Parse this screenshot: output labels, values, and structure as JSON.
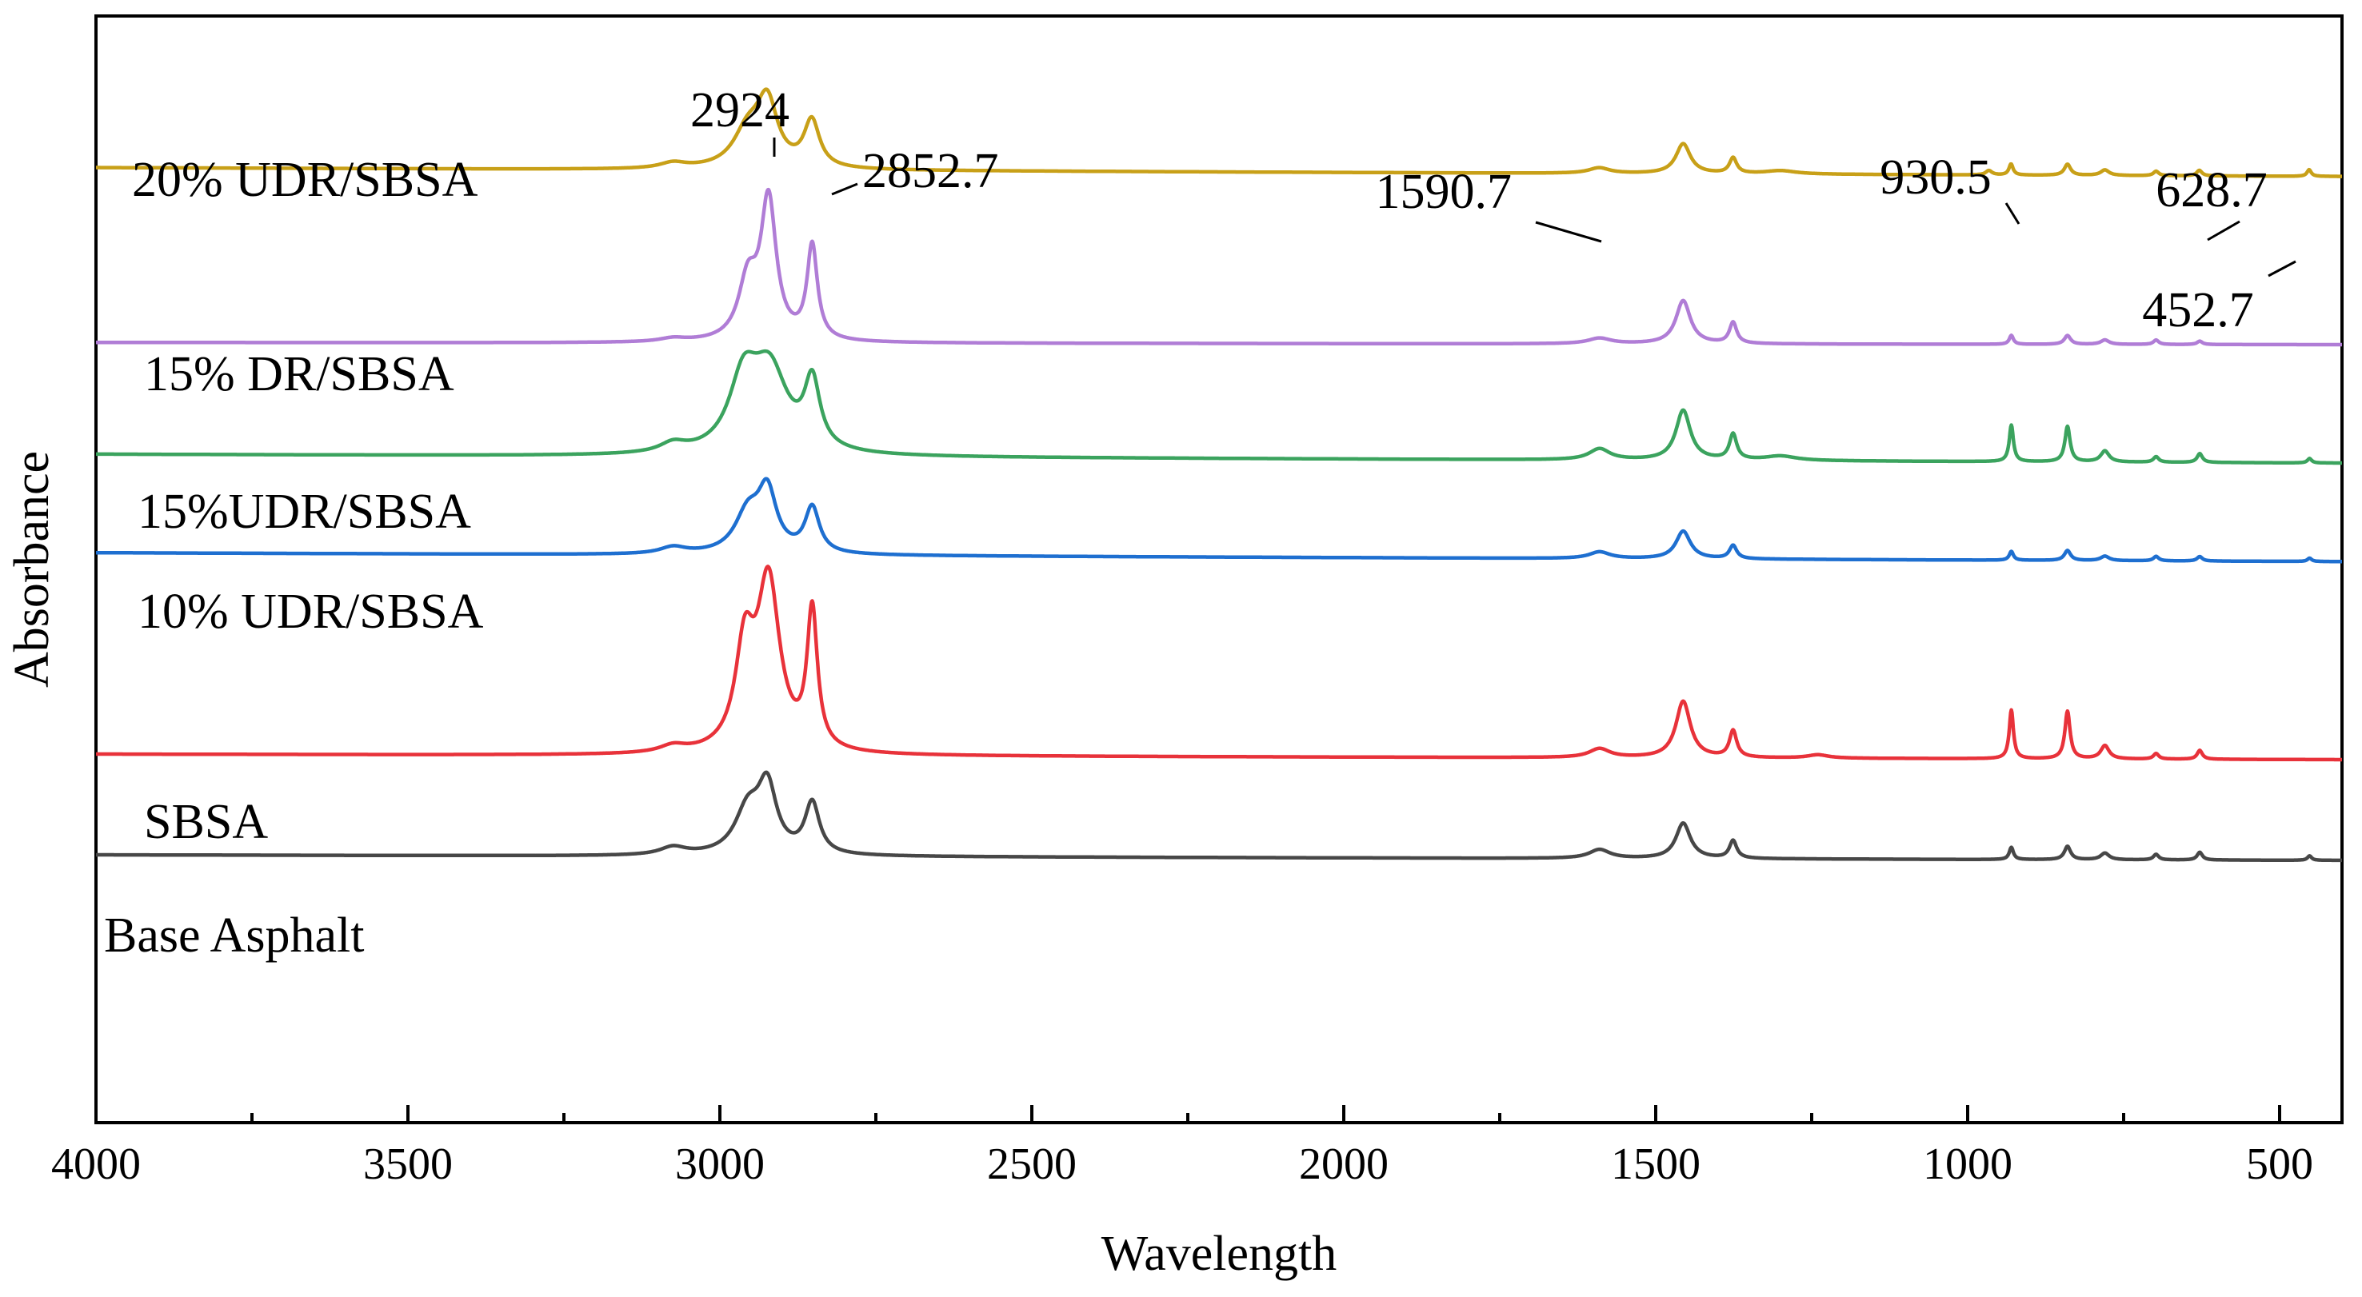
{
  "chart_data": {
    "type": "line",
    "title": "",
    "xlabel": "Wavelength",
    "ylabel": "Absorbance",
    "xlim": [
      4000,
      400
    ],
    "x_inverted": true,
    "xticks": [
      4000,
      3500,
      3000,
      2500,
      2000,
      1500,
      1000,
      500
    ],
    "xtick_labels": [
      "4000",
      "3500",
      "3000",
      "2500",
      "2000",
      "1500",
      "1000",
      "500"
    ],
    "ylim": [
      0,
      10
    ],
    "yticks_shown": false,
    "grid": false,
    "legend": "inline labels beside each curve",
    "series": [
      {
        "name": "20% UDR/SBSA",
        "color": "#C8A018",
        "baseline": 8.63,
        "drift": -0.08,
        "peaks": [
          {
            "x": 3075,
            "h": 0.05,
            "w": 25
          },
          {
            "x": 2955,
            "h": 0.33,
            "w": 28
          },
          {
            "x": 2924,
            "h": 0.56,
            "w": 20
          },
          {
            "x": 2852.7,
            "h": 0.42,
            "w": 15
          },
          {
            "x": 1590.7,
            "h": 0.05,
            "w": 20
          },
          {
            "x": 1456,
            "h": 0.27,
            "w": 14
          },
          {
            "x": 1376,
            "h": 0.14,
            "w": 7
          },
          {
            "x": 1300,
            "h": 0.03,
            "w": 30
          },
          {
            "x": 966,
            "h": 0.04,
            "w": 6
          },
          {
            "x": 930.5,
            "h": 0.1,
            "w": 4
          },
          {
            "x": 840,
            "h": 0.1,
            "w": 6
          },
          {
            "x": 780,
            "h": 0.05,
            "w": 8
          },
          {
            "x": 698,
            "h": 0.04,
            "w": 5
          },
          {
            "x": 628.7,
            "h": 0.05,
            "w": 5
          },
          {
            "x": 452.7,
            "h": 0.06,
            "w": 4
          }
        ]
      },
      {
        "name": "15% DR/SBSA",
        "color": "#B07DD6",
        "baseline": 7.05,
        "drift": -0.02,
        "peaks": [
          {
            "x": 3075,
            "h": 0.03,
            "w": 25
          },
          {
            "x": 2955,
            "h": 0.52,
            "w": 18
          },
          {
            "x": 2922,
            "h": 1.25,
            "w": 15
          },
          {
            "x": 2852,
            "h": 0.85,
            "w": 10
          },
          {
            "x": 1590,
            "h": 0.05,
            "w": 22
          },
          {
            "x": 1456,
            "h": 0.39,
            "w": 14
          },
          {
            "x": 1376,
            "h": 0.19,
            "w": 7
          },
          {
            "x": 930,
            "h": 0.08,
            "w": 4
          },
          {
            "x": 840,
            "h": 0.08,
            "w": 6
          },
          {
            "x": 780,
            "h": 0.04,
            "w": 8
          },
          {
            "x": 698,
            "h": 0.04,
            "w": 5
          },
          {
            "x": 628,
            "h": 0.03,
            "w": 5
          }
        ]
      },
      {
        "name": "15%UDR/SBSA",
        "color": "#3BA35E",
        "baseline": 6.04,
        "drift": -0.08,
        "peaks": [
          {
            "x": 3075,
            "h": 0.08,
            "w": 25
          },
          {
            "x": 2962,
            "h": 0.61,
            "w": 28
          },
          {
            "x": 2920,
            "h": 0.72,
            "w": 35
          },
          {
            "x": 2852,
            "h": 0.6,
            "w": 15
          },
          {
            "x": 1590,
            "h": 0.1,
            "w": 20
          },
          {
            "x": 1456,
            "h": 0.45,
            "w": 14
          },
          {
            "x": 1376,
            "h": 0.23,
            "w": 7
          },
          {
            "x": 1300,
            "h": 0.04,
            "w": 30
          },
          {
            "x": 930,
            "h": 0.33,
            "w": 4
          },
          {
            "x": 840,
            "h": 0.32,
            "w": 5
          },
          {
            "x": 780,
            "h": 0.1,
            "w": 8
          },
          {
            "x": 698,
            "h": 0.05,
            "w": 5
          },
          {
            "x": 628,
            "h": 0.08,
            "w": 5
          },
          {
            "x": 452,
            "h": 0.04,
            "w": 4
          }
        ]
      },
      {
        "name": "10% UDR/SBSA",
        "color": "#1E6FD0",
        "baseline": 5.15,
        "drift": -0.08,
        "peaks": [
          {
            "x": 3075,
            "h": 0.06,
            "w": 25
          },
          {
            "x": 2955,
            "h": 0.36,
            "w": 25
          },
          {
            "x": 2924,
            "h": 0.53,
            "w": 18
          },
          {
            "x": 2852,
            "h": 0.41,
            "w": 14
          },
          {
            "x": 1590,
            "h": 0.06,
            "w": 20
          },
          {
            "x": 1456,
            "h": 0.25,
            "w": 14
          },
          {
            "x": 1376,
            "h": 0.12,
            "w": 7
          },
          {
            "x": 930,
            "h": 0.08,
            "w": 4
          },
          {
            "x": 840,
            "h": 0.09,
            "w": 6
          },
          {
            "x": 780,
            "h": 0.04,
            "w": 8
          },
          {
            "x": 698,
            "h": 0.04,
            "w": 5
          },
          {
            "x": 628,
            "h": 0.04,
            "w": 5
          },
          {
            "x": 452,
            "h": 0.03,
            "w": 4
          }
        ]
      },
      {
        "name": "SBSA",
        "color": "#E8323A",
        "baseline": 3.33,
        "drift": -0.05,
        "peaks": [
          {
            "x": 3075,
            "h": 0.06,
            "w": 25
          },
          {
            "x": 2960,
            "h": 0.88,
            "w": 18
          },
          {
            "x": 2922,
            "h": 1.52,
            "w": 22
          },
          {
            "x": 2852,
            "h": 1.24,
            "w": 10
          },
          {
            "x": 1590,
            "h": 0.08,
            "w": 20
          },
          {
            "x": 1456,
            "h": 0.51,
            "w": 14
          },
          {
            "x": 1376,
            "h": 0.24,
            "w": 7
          },
          {
            "x": 1240,
            "h": 0.03,
            "w": 20
          },
          {
            "x": 930,
            "h": 0.44,
            "w": 4
          },
          {
            "x": 840,
            "h": 0.43,
            "w": 5
          },
          {
            "x": 780,
            "h": 0.12,
            "w": 8
          },
          {
            "x": 698,
            "h": 0.05,
            "w": 5
          },
          {
            "x": 628,
            "h": 0.08,
            "w": 5
          }
        ]
      },
      {
        "name": "Base Asphalt",
        "color": "#474747",
        "baseline": 2.42,
        "drift": -0.05,
        "peaks": [
          {
            "x": 3075,
            "h": 0.07,
            "w": 25
          },
          {
            "x": 2955,
            "h": 0.4,
            "w": 25
          },
          {
            "x": 2924,
            "h": 0.58,
            "w": 18
          },
          {
            "x": 2852,
            "h": 0.46,
            "w": 14
          },
          {
            "x": 1590,
            "h": 0.08,
            "w": 20
          },
          {
            "x": 1456,
            "h": 0.32,
            "w": 14
          },
          {
            "x": 1376,
            "h": 0.16,
            "w": 7
          },
          {
            "x": 930,
            "h": 0.11,
            "w": 4
          },
          {
            "x": 840,
            "h": 0.12,
            "w": 6
          },
          {
            "x": 780,
            "h": 0.06,
            "w": 8
          },
          {
            "x": 698,
            "h": 0.05,
            "w": 5
          },
          {
            "x": 628,
            "h": 0.07,
            "w": 5
          },
          {
            "x": 452,
            "h": 0.04,
            "w": 4
          }
        ]
      }
    ],
    "annotations": [
      {
        "text": "2924",
        "series": 0
      },
      {
        "text": "2852.7",
        "series": 0
      },
      {
        "text": "1590.7",
        "series": 0
      },
      {
        "text": "930.5",
        "series": 0
      },
      {
        "text": "628.7",
        "series": 0
      },
      {
        "text": "452.7",
        "series": 0
      }
    ]
  }
}
